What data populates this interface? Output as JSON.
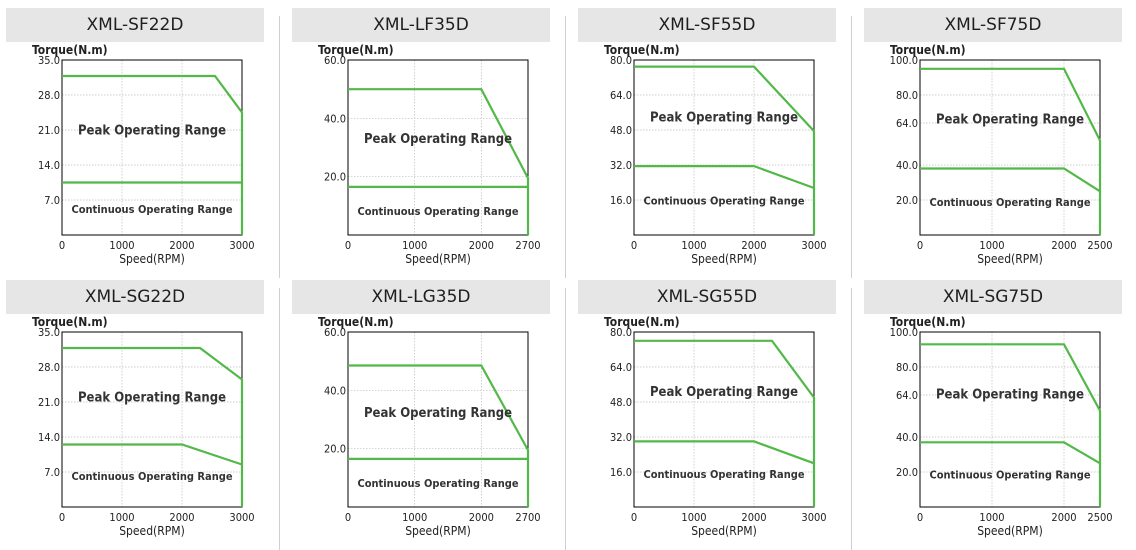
{
  "colors": {
    "curve": "#52b848",
    "title_bg": "#e6e6e6",
    "grid": "#bdbdbd",
    "frame": "#000000"
  },
  "chart_data": [
    {
      "type": "line",
      "title": "XML-SF22D",
      "xlabel": "Speed(RPM)",
      "ylabel": "Torque(N.m)",
      "xlim": [
        0,
        3000
      ],
      "ylim": [
        0,
        35
      ],
      "xticks": [
        "0",
        "1000",
        "2000",
        "3000"
      ],
      "yticks": [
        "7.0",
        "14.0",
        "21.0",
        "28.0",
        "35.0"
      ],
      "peak_label": "Peak Operating Range",
      "continuous_label": "Continuous Operating Range",
      "series": [
        {
          "x": [
            0,
            2550,
            3000,
            3000
          ],
          "y": [
            31.8,
            31.8,
            24.5,
            0
          ]
        },
        {
          "x": [
            0,
            3000
          ],
          "y": [
            10.5,
            10.5
          ]
        }
      ]
    },
    {
      "type": "line",
      "title": "XML-LF35D",
      "xlabel": "Speed(RPM)",
      "ylabel": "Torque(N.m)",
      "xlim": [
        0,
        2700
      ],
      "ylim": [
        0,
        60
      ],
      "xticks": [
        "0",
        "1000",
        "2000",
        "2700"
      ],
      "yticks": [
        "20.0",
        "40.0",
        "60.0"
      ],
      "peak_label": "Peak Operating Range",
      "continuous_label": "Continuous Operating Range",
      "series": [
        {
          "x": [
            0,
            2000,
            2700,
            2700
          ],
          "y": [
            50,
            50,
            19.5,
            0
          ]
        },
        {
          "x": [
            0,
            2700
          ],
          "y": [
            16.5,
            16.5
          ]
        }
      ]
    },
    {
      "type": "line",
      "title": "XML-SF55D",
      "xlabel": "Speed(RPM)",
      "ylabel": "Torque(N.m)",
      "xlim": [
        0,
        3000
      ],
      "ylim": [
        0,
        80
      ],
      "xticks": [
        "0",
        "1000",
        "2000",
        "3000"
      ],
      "yticks": [
        "16.0",
        "32.0",
        "48.0",
        "64.0",
        "80.0"
      ],
      "peak_label": "Peak Operating Range",
      "continuous_label": "Continuous Operating Range",
      "series": [
        {
          "x": [
            0,
            2000,
            3000,
            3000
          ],
          "y": [
            77,
            77,
            47.5,
            0
          ]
        },
        {
          "x": [
            0,
            2000,
            3000
          ],
          "y": [
            31.5,
            31.5,
            21.5
          ]
        }
      ]
    },
    {
      "type": "line",
      "title": "XML-SF75D",
      "xlabel": "Speed(RPM)",
      "ylabel": "Torque(N.m)",
      "xlim": [
        0,
        2500
      ],
      "ylim": [
        0,
        100
      ],
      "xticks": [
        "0",
        "1000",
        "2000",
        "2500"
      ],
      "yticks": [
        "20.0",
        "40.0",
        "64.0",
        "80.0",
        "100.0"
      ],
      "peak_label": "Peak Operating Range",
      "continuous_label": "Continuous Operating Range",
      "series": [
        {
          "x": [
            0,
            2000,
            2500,
            2500
          ],
          "y": [
            95,
            95,
            54,
            0
          ]
        },
        {
          "x": [
            0,
            2000,
            2500
          ],
          "y": [
            38,
            38,
            25
          ]
        }
      ]
    },
    {
      "type": "line",
      "title": "XML-SG22D",
      "xlabel": "Speed(RPM)",
      "ylabel": "Torque(N.m)",
      "xlim": [
        0,
        3000
      ],
      "ylim": [
        0,
        35
      ],
      "xticks": [
        "0",
        "1000",
        "2000",
        "3000"
      ],
      "yticks": [
        "7.0",
        "14.0",
        "21.0",
        "28.0",
        "35.0"
      ],
      "peak_label": "Peak Operating Range",
      "continuous_label": "Continuous Operating Range",
      "series": [
        {
          "x": [
            0,
            2300,
            3000,
            3000
          ],
          "y": [
            31.8,
            31.8,
            25.5,
            0
          ]
        },
        {
          "x": [
            0,
            2000,
            3000
          ],
          "y": [
            12.5,
            12.5,
            8.5
          ]
        }
      ]
    },
    {
      "type": "line",
      "title": "XML-LG35D",
      "xlabel": "Speed(RPM)",
      "ylabel": "Torque(N.m)",
      "xlim": [
        0,
        2700
      ],
      "ylim": [
        0,
        60
      ],
      "xticks": [
        "0",
        "1000",
        "2000",
        "2700"
      ],
      "yticks": [
        "20.0",
        "40.0",
        "60.0"
      ],
      "peak_label": "Peak Operating Range",
      "continuous_label": "Continuous Operating Range",
      "series": [
        {
          "x": [
            0,
            2000,
            2700,
            2700
          ],
          "y": [
            48.5,
            48.5,
            19.5,
            0
          ]
        },
        {
          "x": [
            0,
            2700
          ],
          "y": [
            16.5,
            16.5
          ]
        }
      ]
    },
    {
      "type": "line",
      "title": "XML-SG55D",
      "xlabel": "Speed(RPM)",
      "ylabel": "Torque(N.m)",
      "xlim": [
        0,
        3000
      ],
      "ylim": [
        0,
        80
      ],
      "xticks": [
        "0",
        "1000",
        "2000",
        "3000"
      ],
      "yticks": [
        "16.0",
        "32.0",
        "48.0",
        "64.0",
        "80.0"
      ],
      "peak_label": "Peak Operating Range",
      "continuous_label": "Continuous Operating Range",
      "series": [
        {
          "x": [
            0,
            2300,
            3000,
            3000
          ],
          "y": [
            76,
            76,
            50,
            0
          ]
        },
        {
          "x": [
            0,
            2000,
            3000
          ],
          "y": [
            30,
            30,
            20
          ]
        }
      ]
    },
    {
      "type": "line",
      "title": "XML-SG75D",
      "xlabel": "Speed(RPM)",
      "ylabel": "Torque(N.m)",
      "xlim": [
        0,
        2500
      ],
      "ylim": [
        0,
        100
      ],
      "xticks": [
        "0",
        "1000",
        "2000",
        "2500"
      ],
      "yticks": [
        "20.0",
        "40.0",
        "64.0",
        "80.0",
        "100.0"
      ],
      "peak_label": "Peak Operating Range",
      "continuous_label": "Continuous Operating Range",
      "series": [
        {
          "x": [
            0,
            2000,
            2500,
            2500
          ],
          "y": [
            93,
            93,
            55,
            0
          ]
        },
        {
          "x": [
            0,
            2000,
            2500
          ],
          "y": [
            37,
            37,
            25
          ]
        }
      ]
    }
  ]
}
